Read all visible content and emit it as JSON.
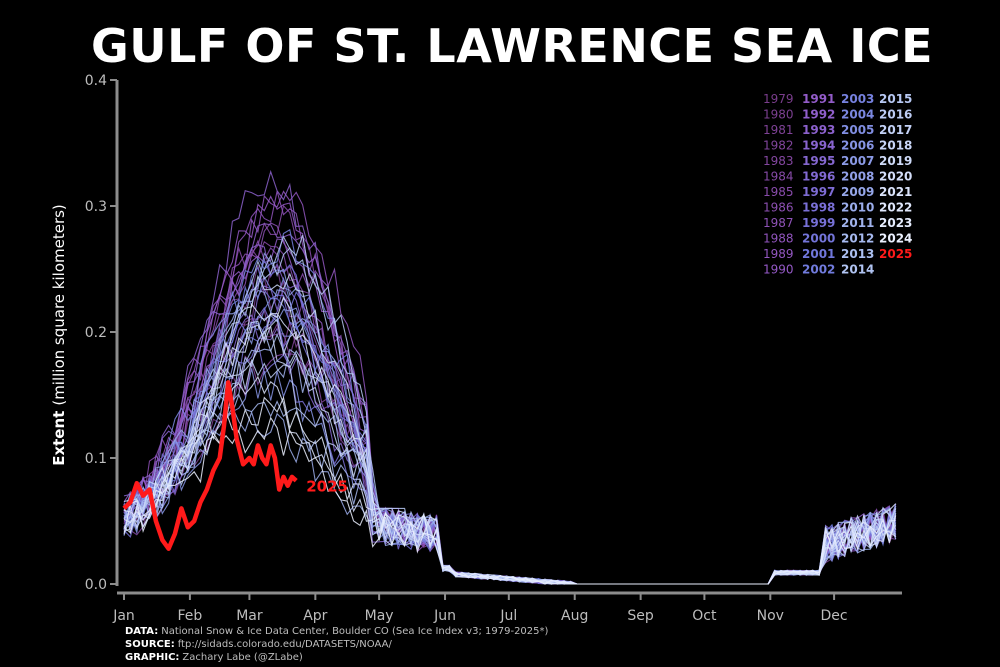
{
  "title": "GULF OF ST. LAWRENCE SEA ICE",
  "credits": [
    {
      "label": "DATA:",
      "text": "National Snow & Ice Data Center, Boulder CO (Sea Ice Index v3; 1979-2025*)"
    },
    {
      "label": "SOURCE:",
      "text": "ftp://sidads.colorado.edu/DATASETS/NOAA/"
    },
    {
      "label": "GRAPHIC:",
      "text": "Zachary Labe (@ZLabe)"
    }
  ],
  "colors": {
    "background": "#000000",
    "highlight": "#ff1a1a",
    "axis": "#8c8c8c",
    "early_years": "#7a3d8c",
    "mid_years": "#6b6fd6",
    "late_years": "#dfe8ff"
  },
  "chart_data": {
    "type": "line",
    "title": "GULF OF ST. LAWRENCE SEA ICE",
    "xlabel": "",
    "ylabel": "Extent (million square kilometers)",
    "ylabel_bold": "Extent",
    "ylabel_rest": "(million square kilometers)",
    "ylim": [
      0.0,
      0.4
    ],
    "yticks": [
      "0.0",
      "0.1",
      "0.2",
      "0.3",
      "0.4"
    ],
    "xlim": [
      1,
      366
    ],
    "xticks": [
      "Jan",
      "Feb",
      "Mar",
      "Apr",
      "May",
      "Jun",
      "Jul",
      "Aug",
      "Sep",
      "Oct",
      "Nov",
      "Dec"
    ],
    "xtick_days": [
      1,
      32,
      60,
      91,
      121,
      152,
      182,
      213,
      244,
      274,
      305,
      335
    ],
    "grid": false,
    "legend": "top-right",
    "legend_columns": [
      [
        "1979",
        "1980",
        "1981",
        "1982",
        "1983",
        "1984",
        "1985",
        "1986",
        "1987",
        "1988",
        "1989",
        "1990"
      ],
      [
        "1991",
        "1992",
        "1993",
        "1994",
        "1995",
        "1996",
        "1997",
        "1998",
        "1999",
        "2000",
        "2001",
        "2002"
      ],
      [
        "2003",
        "2004",
        "2005",
        "2006",
        "2007",
        "2008",
        "2009",
        "2010",
        "2011",
        "2012",
        "2013",
        "2014"
      ],
      [
        "2015",
        "2016",
        "2017",
        "2018",
        "2019",
        "2020",
        "2021",
        "2022",
        "2023",
        "2024",
        "2025"
      ]
    ],
    "series": [
      {
        "name": "1979",
        "peak": 0.23,
        "peak_day": 70
      },
      {
        "name": "1980",
        "peak": 0.2,
        "peak_day": 75
      },
      {
        "name": "1981",
        "peak": 0.24,
        "peak_day": 68
      },
      {
        "name": "1982",
        "peak": 0.21,
        "peak_day": 66
      },
      {
        "name": "1983",
        "peak": 0.18,
        "peak_day": 74
      },
      {
        "name": "1984",
        "peak": 0.26,
        "peak_day": 69
      },
      {
        "name": "1985",
        "peak": 0.29,
        "peak_day": 72
      },
      {
        "name": "1986",
        "peak": 0.27,
        "peak_day": 67
      },
      {
        "name": "1987",
        "peak": 0.28,
        "peak_day": 73
      },
      {
        "name": "1988",
        "peak": 0.3,
        "peak_day": 71
      },
      {
        "name": "1989",
        "peak": 0.31,
        "peak_day": 76
      },
      {
        "name": "1990",
        "peak": 0.3,
        "peak_day": 70
      },
      {
        "name": "1991",
        "peak": 0.27,
        "peak_day": 68
      },
      {
        "name": "1992",
        "peak": 0.29,
        "peak_day": 74
      },
      {
        "name": "1993",
        "peak": 0.32,
        "peak_day": 70
      },
      {
        "name": "1994",
        "peak": 0.26,
        "peak_day": 65
      },
      {
        "name": "1995",
        "peak": 0.2,
        "peak_day": 64
      },
      {
        "name": "1996",
        "peak": 0.23,
        "peak_day": 75
      },
      {
        "name": "1997",
        "peak": 0.22,
        "peak_day": 71
      },
      {
        "name": "1998",
        "peak": 0.18,
        "peak_day": 63
      },
      {
        "name": "1999",
        "peak": 0.2,
        "peak_day": 72
      },
      {
        "name": "2000",
        "peak": 0.24,
        "peak_day": 69
      },
      {
        "name": "2001",
        "peak": 0.25,
        "peak_day": 73
      },
      {
        "name": "2002",
        "peak": 0.22,
        "peak_day": 70
      },
      {
        "name": "2003",
        "peak": 0.27,
        "peak_day": 74
      },
      {
        "name": "2004",
        "peak": 0.24,
        "peak_day": 66
      },
      {
        "name": "2005",
        "peak": 0.21,
        "peak_day": 72
      },
      {
        "name": "2006",
        "peak": 0.16,
        "peak_day": 68
      },
      {
        "name": "2007",
        "peak": 0.22,
        "peak_day": 75
      },
      {
        "name": "2008",
        "peak": 0.25,
        "peak_day": 71
      },
      {
        "name": "2009",
        "peak": 0.23,
        "peak_day": 69
      },
      {
        "name": "2010",
        "peak": 0.13,
        "peak_day": 60
      },
      {
        "name": "2011",
        "peak": 0.18,
        "peak_day": 70
      },
      {
        "name": "2012",
        "peak": 0.15,
        "peak_day": 64
      },
      {
        "name": "2013",
        "peak": 0.19,
        "peak_day": 72
      },
      {
        "name": "2014",
        "peak": 0.26,
        "peak_day": 76
      },
      {
        "name": "2015",
        "peak": 0.27,
        "peak_day": 78
      },
      {
        "name": "2016",
        "peak": 0.17,
        "peak_day": 66
      },
      {
        "name": "2017",
        "peak": 0.2,
        "peak_day": 70
      },
      {
        "name": "2018",
        "peak": 0.19,
        "peak_day": 68
      },
      {
        "name": "2019",
        "peak": 0.24,
        "peak_day": 73
      },
      {
        "name": "2020",
        "peak": 0.21,
        "peak_day": 70
      },
      {
        "name": "2021",
        "peak": 0.15,
        "peak_day": 62
      },
      {
        "name": "2022",
        "peak": 0.22,
        "peak_day": 71
      },
      {
        "name": "2023",
        "peak": 0.14,
        "peak_day": 65
      },
      {
        "name": "2024",
        "peak": 0.12,
        "peak_day": 63
      },
      {
        "name": "2025",
        "highlight": true,
        "x": [
          1,
          4,
          7,
          10,
          13,
          16,
          19,
          22,
          25,
          28,
          31,
          34,
          37,
          40,
          43,
          46,
          48,
          50,
          52,
          54,
          57,
          60,
          62,
          64,
          66,
          68,
          70,
          72,
          74,
          76,
          78,
          80,
          82
        ],
        "y": [
          0.06,
          0.065,
          0.08,
          0.07,
          0.075,
          0.05,
          0.035,
          0.028,
          0.04,
          0.06,
          0.045,
          0.05,
          0.065,
          0.075,
          0.09,
          0.1,
          0.125,
          0.16,
          0.14,
          0.115,
          0.095,
          0.1,
          0.095,
          0.11,
          0.1,
          0.095,
          0.11,
          0.1,
          0.075,
          0.085,
          0.078,
          0.085,
          0.082
        ]
      }
    ],
    "annotations": [
      {
        "text": "2025",
        "x": 82,
        "y": 0.078
      }
    ]
  }
}
